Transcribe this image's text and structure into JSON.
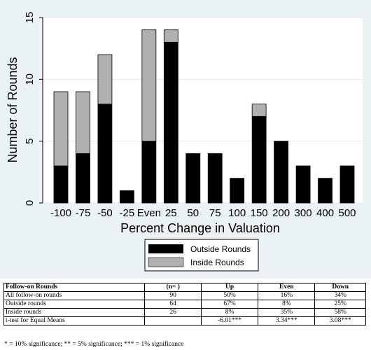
{
  "chart_data": {
    "type": "bar",
    "stacked": true,
    "categories": [
      "-100",
      "-75",
      "-50",
      "-25",
      "Even",
      "25",
      "50",
      "75",
      "100",
      "150",
      "200",
      "300",
      "400",
      "500"
    ],
    "series": [
      {
        "name": "Outside Rounds",
        "color": "#000000",
        "values": [
          3,
          4,
          8,
          1,
          5,
          13,
          4,
          4,
          2,
          7,
          5,
          3,
          2,
          3
        ]
      },
      {
        "name": "Inside Rounds",
        "color": "#b0b0b0",
        "values": [
          6,
          5,
          4,
          0,
          9,
          1,
          0,
          0,
          0,
          1,
          0,
          0,
          0,
          0
        ]
      }
    ],
    "xlabel": "Percent Change in Valuation",
    "ylabel": "Number of Rounds",
    "ylim": [
      0,
      15
    ],
    "yticks": [
      "0",
      "5",
      "10",
      "15"
    ],
    "grid": true,
    "legend_position": "bottom"
  },
  "table": {
    "headers": [
      "Follow-on Rounds",
      "(n= )",
      "Up",
      "Even",
      "Down"
    ],
    "rows": [
      [
        "All follow-on rounds",
        "90",
        "50%",
        "16%",
        "34%"
      ],
      [
        "Outside rounds",
        "64",
        "67%",
        "8%",
        "25%"
      ],
      [
        "Inside rounds",
        "26",
        "8%",
        "35%",
        "58%"
      ],
      [
        "t-test for Equal Means",
        "",
        "-6.01***",
        "3.34***",
        "3.08***"
      ]
    ]
  },
  "footnote": "* = 10% significance; ** = 5% significance; *** = 1% significance"
}
